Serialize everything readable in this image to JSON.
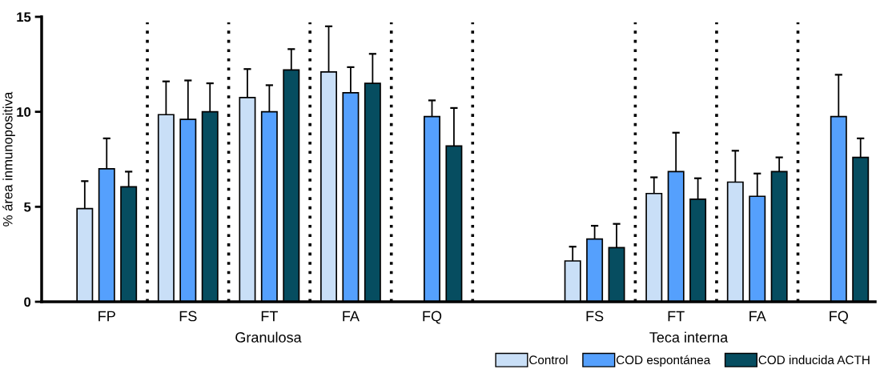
{
  "chart_data": {
    "type": "bar",
    "ylabel": "% área inmunopositiva",
    "categories": [
      "FP",
      "FS",
      "FT",
      "FA",
      "FQ",
      null,
      "FS",
      "FT",
      "FA",
      "FQ"
    ],
    "ylim": [
      0,
      15
    ],
    "yticks": [
      0,
      5,
      10,
      15
    ],
    "series": [
      {
        "name": "Control",
        "color": "#c9dff7",
        "values": [
          4.9,
          9.85,
          10.75,
          12.1,
          null,
          null,
          2.15,
          5.7,
          6.3,
          null
        ],
        "errors": [
          [
            4.9,
            6.35
          ],
          [
            9.85,
            11.6
          ],
          [
            10.75,
            12.25
          ],
          [
            12.1,
            14.5
          ],
          null,
          null,
          [
            2.15,
            2.9
          ],
          [
            5.7,
            6.55
          ],
          [
            6.3,
            7.95
          ],
          null
        ]
      },
      {
        "name": "COD espontánea",
        "color": "#55a0fd",
        "values": [
          7.0,
          9.6,
          10.0,
          11.0,
          9.75,
          null,
          3.3,
          6.85,
          5.55,
          9.75
        ],
        "errors": [
          [
            7.0,
            8.6
          ],
          [
            9.6,
            11.65
          ],
          [
            10.0,
            11.4
          ],
          [
            11.0,
            12.35
          ],
          [
            9.75,
            10.6
          ],
          null,
          [
            3.3,
            4.0
          ],
          [
            6.85,
            8.9
          ],
          [
            5.55,
            6.75
          ],
          [
            9.75,
            11.95
          ]
        ]
      },
      {
        "name": "COD inducida ACTH",
        "color": "#064d60",
        "values": [
          6.05,
          10.0,
          12.2,
          11.5,
          8.2,
          null,
          2.85,
          5.4,
          6.85,
          7.6
        ],
        "errors": [
          [
            6.05,
            6.85
          ],
          [
            10.0,
            11.5
          ],
          [
            12.2,
            13.3
          ],
          [
            11.5,
            13.05
          ],
          [
            8.2,
            10.2
          ],
          null,
          [
            2.85,
            4.1
          ],
          [
            5.4,
            6.5
          ],
          [
            6.85,
            7.6
          ],
          [
            7.6,
            8.6
          ]
        ]
      }
    ],
    "annotations": [
      "Granulosa",
      "Teca interna"
    ],
    "grid": false,
    "legend": "bottom right"
  }
}
